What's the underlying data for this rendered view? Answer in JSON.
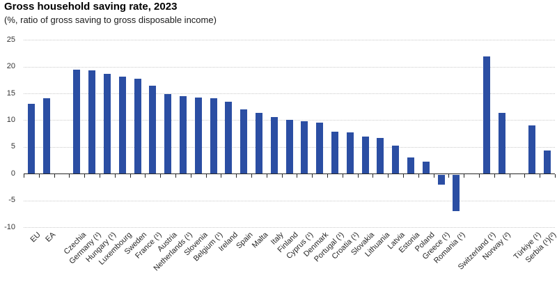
{
  "chart_data": {
    "type": "bar",
    "title": "Gross household saving rate, 2023",
    "subtitle": "(%, ratio of gross saving to gross disposable income)",
    "xlabel": "",
    "ylabel": "",
    "ylim": [
      -10,
      25
    ],
    "yticks": [
      25,
      20,
      15,
      10,
      5,
      0,
      -5,
      -10
    ],
    "grid": "horizontal-dotted",
    "legend": "none",
    "bar_color": "#2b4ea3",
    "axis_color": "#262626",
    "gridline_color": "#c9c9c9",
    "categories": [
      "EU",
      "EA",
      "Czechia",
      "Germany (¹)",
      "Hungary (¹)",
      "Luxembourg",
      "Sweden",
      "France (¹)",
      "Austria",
      "Netherlands (¹)",
      "Slovenia",
      "Belgium (¹)",
      "Ireland",
      "Spain",
      "Malta",
      "Italy",
      "Finland",
      "Cyprus (¹)",
      "Denmark",
      "Portugal (¹)",
      "Croatia (¹)",
      "Slovakia",
      "Lithuania",
      "Latvia",
      "Estonia",
      "Poland",
      "Greece (¹)",
      "Romania (¹)",
      "Switzerland (¹)",
      "Norway (²)",
      "Türkiye (¹)",
      "Serbia (¹)(²)"
    ],
    "values": [
      13.1,
      14.1,
      19.4,
      19.3,
      18.7,
      18.1,
      17.8,
      16.5,
      14.9,
      14.5,
      14.2,
      14.1,
      13.4,
      12.0,
      11.4,
      10.6,
      10.0,
      9.8,
      9.6,
      7.9,
      7.7,
      7.0,
      6.7,
      5.3,
      3.0,
      2.3,
      -1.9,
      -6.8,
      21.9,
      11.4,
      9.0,
      4.3
    ],
    "slots": [
      0,
      1,
      3,
      4,
      5,
      6,
      7,
      8,
      9,
      10,
      11,
      12,
      13,
      14,
      15,
      16,
      17,
      18,
      19,
      20,
      21,
      22,
      23,
      24,
      25,
      26,
      27,
      28,
      30,
      31,
      33,
      34
    ],
    "total_slots": 35
  }
}
